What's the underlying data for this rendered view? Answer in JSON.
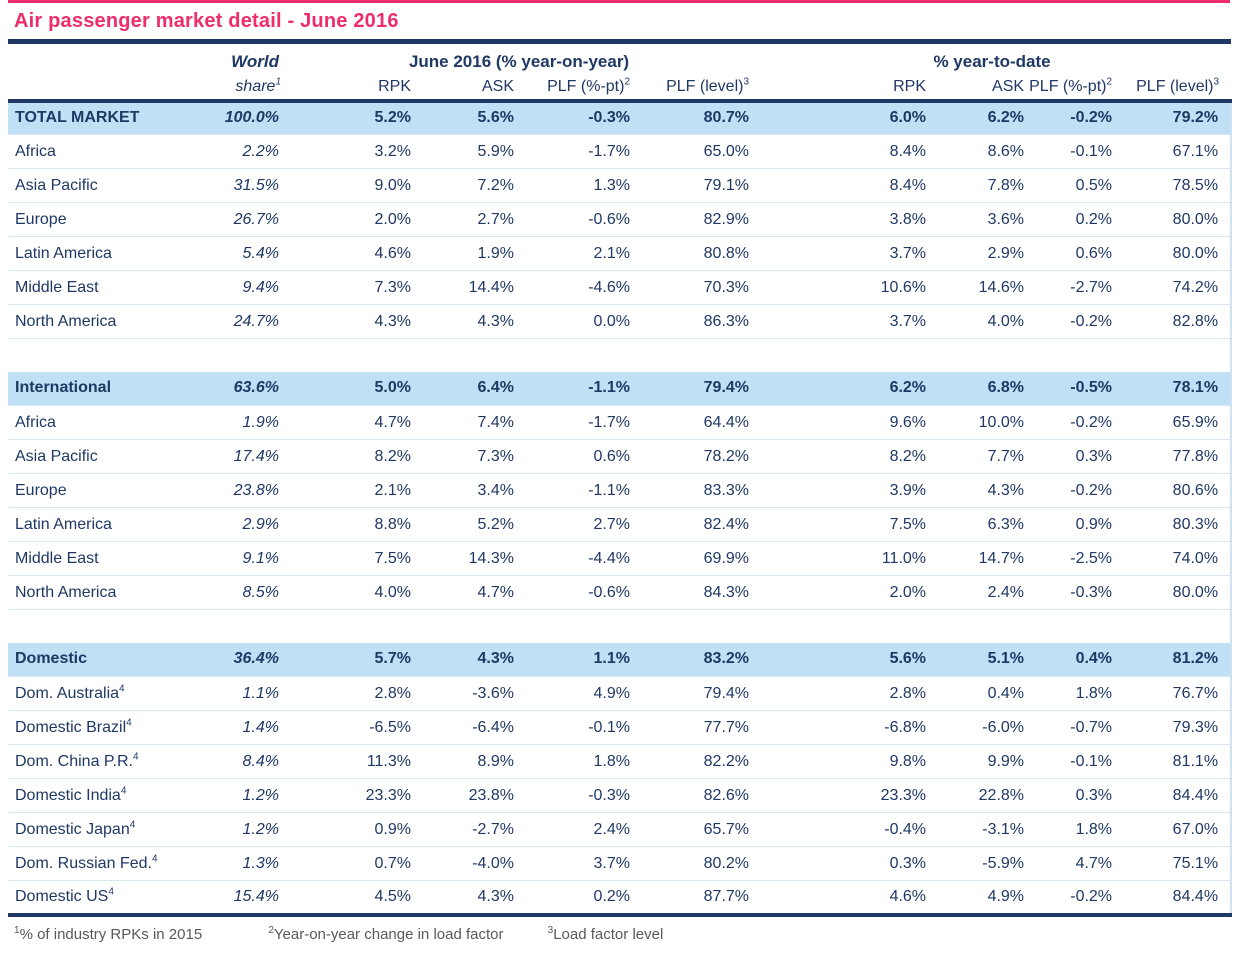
{
  "colors": {
    "accent_pink": "#EE2D6C",
    "navy_text": "#1F3864",
    "section_highlight_bg": "#BFE0F5",
    "row_separator": "#D9E6F3",
    "footnote_gray": "#595959"
  },
  "chart_data": {
    "type": "table",
    "title": "Air passenger market detail - June 2016",
    "header": {
      "world_share": {
        "line1": "World",
        "line2": "share",
        "sup": "1"
      },
      "groups": {
        "yoy": "June 2016 (% year-on-year)",
        "ytd": "% year-to-date"
      },
      "sub_headers": [
        {
          "label": "RPK"
        },
        {
          "label": "ASK"
        },
        {
          "label": "PLF (%-pt)",
          "sup": "2"
        },
        {
          "label": "PLF (level)",
          "sup": "3"
        },
        {
          "label": "RPK"
        },
        {
          "label": "ASK"
        },
        {
          "label": "PLF (%-pt)",
          "sup": "2"
        },
        {
          "label": "PLF (level)",
          "sup": "3"
        }
      ]
    },
    "sections": [
      {
        "header": {
          "label": "TOTAL MARKET",
          "world_share": "100.0%",
          "values": [
            "5.2%",
            "5.6%",
            "-0.3%",
            "80.7%",
            "6.0%",
            "6.2%",
            "-0.2%",
            "79.2%"
          ]
        },
        "rows": [
          {
            "label": "Africa",
            "world_share": "2.2%",
            "values": [
              "3.2%",
              "5.9%",
              "-1.7%",
              "65.0%",
              "8.4%",
              "8.6%",
              "-0.1%",
              "67.1%"
            ]
          },
          {
            "label": "Asia Pacific",
            "world_share": "31.5%",
            "values": [
              "9.0%",
              "7.2%",
              "1.3%",
              "79.1%",
              "8.4%",
              "7.8%",
              "0.5%",
              "78.5%"
            ]
          },
          {
            "label": "Europe",
            "world_share": "26.7%",
            "values": [
              "2.0%",
              "2.7%",
              "-0.6%",
              "82.9%",
              "3.8%",
              "3.6%",
              "0.2%",
              "80.0%"
            ]
          },
          {
            "label": "Latin America",
            "world_share": "5.4%",
            "values": [
              "4.6%",
              "1.9%",
              "2.1%",
              "80.8%",
              "3.7%",
              "2.9%",
              "0.6%",
              "80.0%"
            ]
          },
          {
            "label": "Middle East",
            "world_share": "9.4%",
            "values": [
              "7.3%",
              "14.4%",
              "-4.6%",
              "70.3%",
              "10.6%",
              "14.6%",
              "-2.7%",
              "74.2%"
            ]
          },
          {
            "label": "North America",
            "world_share": "24.7%",
            "values": [
              "4.3%",
              "4.3%",
              "0.0%",
              "86.3%",
              "3.7%",
              "4.0%",
              "-0.2%",
              "82.8%"
            ]
          }
        ]
      },
      {
        "header": {
          "label": "International",
          "world_share": "63.6%",
          "values": [
            "5.0%",
            "6.4%",
            "-1.1%",
            "79.4%",
            "6.2%",
            "6.8%",
            "-0.5%",
            "78.1%"
          ]
        },
        "rows": [
          {
            "label": "Africa",
            "world_share": "1.9%",
            "values": [
              "4.7%",
              "7.4%",
              "-1.7%",
              "64.4%",
              "9.6%",
              "10.0%",
              "-0.2%",
              "65.9%"
            ]
          },
          {
            "label": "Asia Pacific",
            "world_share": "17.4%",
            "values": [
              "8.2%",
              "7.3%",
              "0.6%",
              "78.2%",
              "8.2%",
              "7.7%",
              "0.3%",
              "77.8%"
            ]
          },
          {
            "label": "Europe",
            "world_share": "23.8%",
            "values": [
              "2.1%",
              "3.4%",
              "-1.1%",
              "83.3%",
              "3.9%",
              "4.3%",
              "-0.2%",
              "80.6%"
            ]
          },
          {
            "label": "Latin America",
            "world_share": "2.9%",
            "values": [
              "8.8%",
              "5.2%",
              "2.7%",
              "82.4%",
              "7.5%",
              "6.3%",
              "0.9%",
              "80.3%"
            ]
          },
          {
            "label": "Middle East",
            "world_share": "9.1%",
            "values": [
              "7.5%",
              "14.3%",
              "-4.4%",
              "69.9%",
              "11.0%",
              "14.7%",
              "-2.5%",
              "74.0%"
            ]
          },
          {
            "label": "North America",
            "world_share": "8.5%",
            "values": [
              "4.0%",
              "4.7%",
              "-0.6%",
              "84.3%",
              "2.0%",
              "2.4%",
              "-0.3%",
              "80.0%"
            ]
          }
        ]
      },
      {
        "header": {
          "label": "Domestic",
          "world_share": "36.4%",
          "values": [
            "5.7%",
            "4.3%",
            "1.1%",
            "83.2%",
            "5.6%",
            "5.1%",
            "0.4%",
            "81.2%"
          ]
        },
        "rows": [
          {
            "label": "Dom. Australia",
            "label_sup": "4",
            "world_share": "1.1%",
            "values": [
              "2.8%",
              "-3.6%",
              "4.9%",
              "79.4%",
              "2.8%",
              "0.4%",
              "1.8%",
              "76.7%"
            ]
          },
          {
            "label": "Domestic Brazil",
            "label_sup": "4",
            "world_share": "1.4%",
            "values": [
              "-6.5%",
              "-6.4%",
              "-0.1%",
              "77.7%",
              "-6.8%",
              "-6.0%",
              "-0.7%",
              "79.3%"
            ]
          },
          {
            "label": "Dom. China P.R.",
            "label_sup": "4",
            "world_share": "8.4%",
            "values": [
              "11.3%",
              "8.9%",
              "1.8%",
              "82.2%",
              "9.8%",
              "9.9%",
              "-0.1%",
              "81.1%"
            ]
          },
          {
            "label": "Domestic India",
            "label_sup": "4",
            "world_share": "1.2%",
            "values": [
              "23.3%",
              "23.8%",
              "-0.3%",
              "82.6%",
              "23.3%",
              "22.8%",
              "0.3%",
              "84.4%"
            ]
          },
          {
            "label": "Domestic Japan",
            "label_sup": "4",
            "world_share": "1.2%",
            "values": [
              "0.9%",
              "-2.7%",
              "2.4%",
              "65.7%",
              "-0.4%",
              "-3.1%",
              "1.8%",
              "67.0%"
            ]
          },
          {
            "label": "Dom. Russian Fed.",
            "label_sup": "4",
            "world_share": "1.3%",
            "values": [
              "0.7%",
              "-4.0%",
              "3.7%",
              "80.2%",
              "0.3%",
              "-5.9%",
              "4.7%",
              "75.1%"
            ]
          },
          {
            "label": "Domestic US",
            "label_sup": "4",
            "world_share": "15.4%",
            "values": [
              "4.5%",
              "4.3%",
              "0.2%",
              "87.7%",
              "4.6%",
              "4.9%",
              "-0.2%",
              "84.4%"
            ]
          }
        ]
      }
    ],
    "footnotes": [
      {
        "sup": "1",
        "text": "% of industry RPKs in 2015"
      },
      {
        "sup": "2",
        "text": "Year-on-year change in load factor"
      },
      {
        "sup": "3",
        "text": "Load factor level"
      }
    ]
  }
}
